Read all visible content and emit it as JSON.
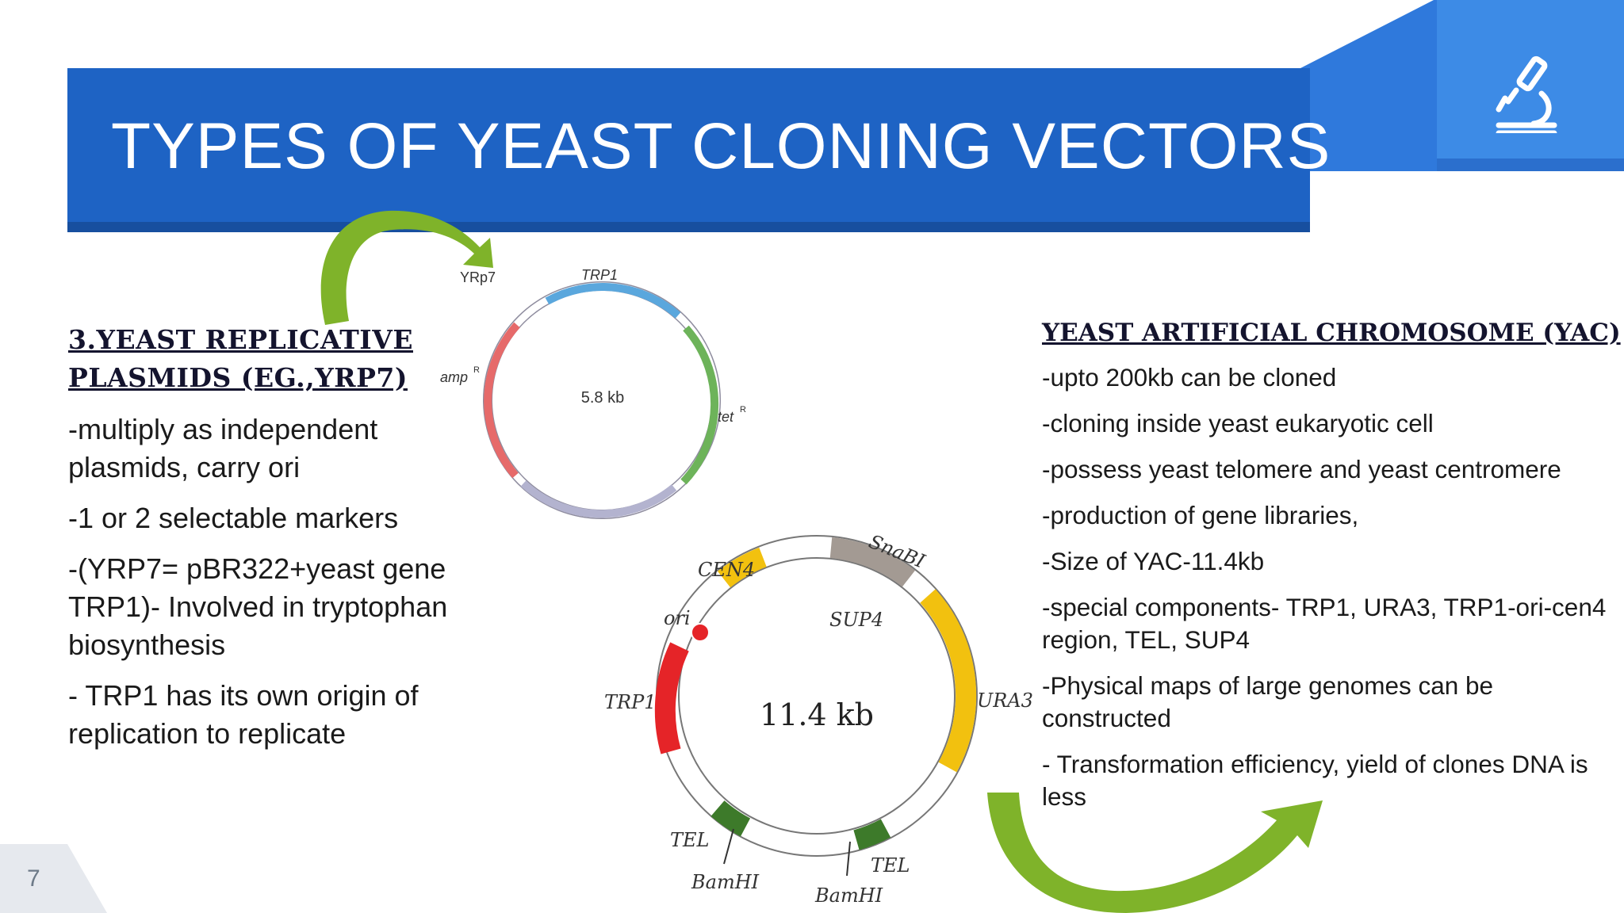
{
  "slide": {
    "title": "TYPES OF YEAST CLONING VECTORS",
    "page_number": "7",
    "icon": "microscope-icon",
    "accent_color": "#1e63c4"
  },
  "left": {
    "heading_line1": "3.YEAST REPLICATIVE",
    "heading_line2": "PLASMIDS (EG.,YRP7)",
    "bullets": [
      "-multiply as independent plasmids, carry ori",
      "-1 or 2 selectable markers",
      "-(YRP7= pBR322+yeast gene TRP1)- Involved in tryptophan biosynthesis",
      "- TRP1 has its own origin of replication to replicate"
    ]
  },
  "right": {
    "heading": "YEAST ARTIFICIAL CHROMOSOME (YAC)",
    "bullets": [
      "-upto 200kb can be cloned",
      "-cloning inside yeast eukaryotic cell",
      "-possess yeast telomere and yeast centromere",
      "-production of gene libraries,",
      "-Size of YAC-11.4kb",
      "-special components- TRP1, URA3, TRP1-ori-cen4 region, TEL, SUP4",
      "-Physical maps of large genomes can be constructed",
      "- Transformation efficiency, yield of clones DNA is less"
    ]
  },
  "yrp7_map": {
    "name": "YRp7",
    "size": "5.8 kb",
    "labels": {
      "trp1": "TRP1",
      "amp": "amp",
      "tet": "tet",
      "superscript": "R"
    }
  },
  "yac_map": {
    "size": "11.4 kb",
    "labels": {
      "cen4": "CEN4",
      "snabi": "SnaBI",
      "sup4": "SUP4",
      "ori": "ori",
      "trp1": "TRP1",
      "ura3": "URA3",
      "tel_left": "TEL",
      "tel_right": "TEL",
      "bamhi_left": "BamHI",
      "bamhi_right": "BamHI"
    }
  },
  "colors": {
    "arrow_green": "#7fb32a",
    "cen4_yellow": "#f2c10f",
    "trp1_red": "#e52428",
    "tel_green": "#3d7a2a",
    "snabi_gray": "#a39a93"
  }
}
